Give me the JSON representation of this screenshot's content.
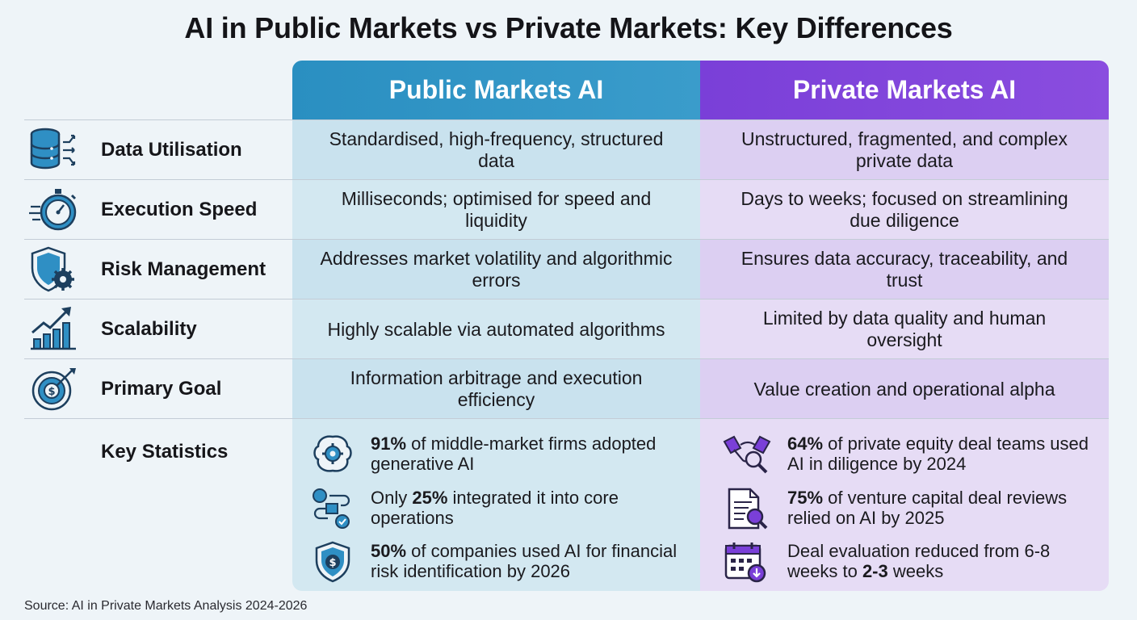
{
  "title": "AI in Public Markets vs Private Markets: Key Differences",
  "columns": {
    "public": "Public Markets AI",
    "private": "Private Markets AI"
  },
  "rows": [
    {
      "label": "Data Utilisation",
      "icon": "database-icon",
      "public": "Standardised, high-frequency, structured data",
      "private": "Unstructured, fragmented, and complex private data"
    },
    {
      "label": "Execution Speed",
      "icon": "stopwatch-icon",
      "public": "Milliseconds; optimised for speed and liquidity",
      "private": "Days to weeks; focused on streamlining due diligence"
    },
    {
      "label": "Risk Management",
      "icon": "shield-gear-icon",
      "public": "Addresses market volatility and algorithmic errors",
      "private": "Ensures data accuracy, traceability, and trust"
    },
    {
      "label": "Scalability",
      "icon": "growth-chart-icon",
      "public": "Highly scalable via automated algorithms",
      "private": "Limited by data quality and human oversight"
    },
    {
      "label": "Primary Goal",
      "icon": "target-dollar-icon",
      "public": "Information arbitrage and execution efficiency",
      "private": "Value creation and operational alpha"
    }
  ],
  "key_statistics": {
    "label": "Key Statistics",
    "public": [
      {
        "icon": "brain-gear-icon",
        "pre": "",
        "bold": "91%",
        "post": " of middle-market firms adopted generative AI"
      },
      {
        "icon": "workflow-icon",
        "pre": "Only ",
        "bold": "25%",
        "post": " integrated it into core operations"
      },
      {
        "icon": "shield-dollar-icon",
        "pre": "",
        "bold": "50%",
        "post": " of companies used AI for financial risk identification by 2026"
      }
    ],
    "private": [
      {
        "icon": "handshake-magnifier-icon",
        "pre": "",
        "bold": "64%",
        "post": " of private equity deal teams used AI in diligence by 2024"
      },
      {
        "icon": "document-review-icon",
        "pre": "",
        "bold": "75%",
        "post": " of venture capital deal reviews relied on AI by 2025"
      },
      {
        "icon": "calendar-download-icon",
        "pre": "Deal evaluation reduced from 6-8 weeks to ",
        "bold": "2-3",
        "post": " weeks"
      }
    ]
  },
  "source": "Source: AI in Private Markets Analysis 2024-2026",
  "colors": {
    "public_header": "#2a8fc1",
    "private_header": "#7a3fd8",
    "icon_navy": "#1d3f5e",
    "icon_blue": "#2f8fc4"
  }
}
